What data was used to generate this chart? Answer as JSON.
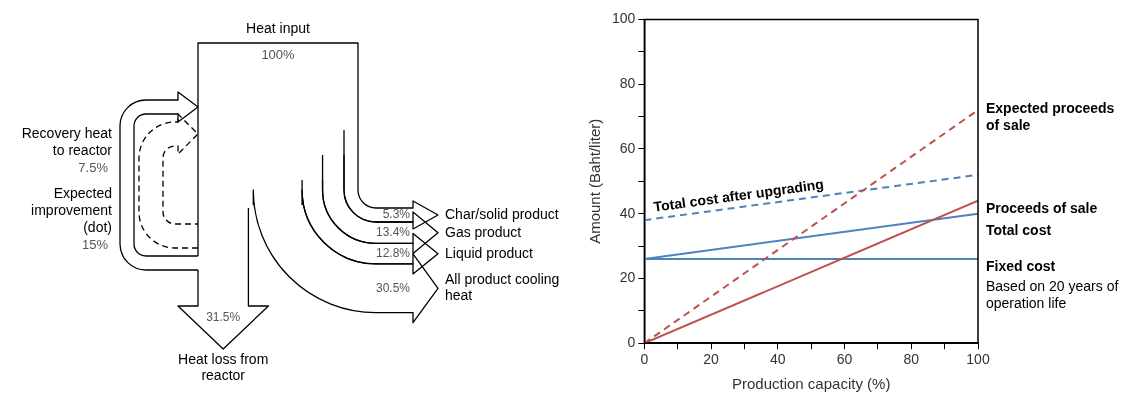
{
  "chart_data": [
    {
      "type": "other",
      "categories": [
        "Heat input",
        "Recovery heat to reactor",
        "Expected improvement (dot)",
        "Char/solid product",
        "Gas product",
        "Liquid product",
        "All product cooling heat",
        "Heat loss from reactor"
      ],
      "values": [
        100,
        7.5,
        15,
        5.3,
        13.4,
        12.8,
        30.5,
        31.5
      ],
      "value_labels": [
        "100%",
        "7.5%",
        "15%",
        "5.3%",
        "13.4%",
        "12.8%",
        "30.5%",
        "31.5%"
      ]
    },
    {
      "type": "line",
      "x": [
        0,
        100
      ],
      "xlabel": "Production capacity (%)",
      "ylabel": "Amount (Baht/liter)",
      "xlim": [
        0,
        100
      ],
      "ylim": [
        0,
        100
      ],
      "xticks": [
        0,
        {
          "value": 10,
          "label": null
        },
        20,
        {
          "value": 30,
          "label": null
        },
        40,
        {
          "value": 50,
          "label": null
        },
        60,
        {
          "value": 70,
          "label": null
        },
        80,
        {
          "value": 90,
          "label": null
        },
        100
      ],
      "yticks": [
        0,
        {
          "value": 10,
          "label": null
        },
        20,
        {
          "value": 30,
          "label": null
        },
        40,
        {
          "value": 50,
          "label": null
        },
        60,
        {
          "value": 70,
          "label": null
        },
        80,
        {
          "value": 90,
          "label": null
        },
        100
      ],
      "grid": false,
      "legend": false,
      "marker": "none",
      "series": [
        {
          "name": "Expected proceeds of sale",
          "color": "#c0504d",
          "line_style": "dashed",
          "values": [
            0,
            72
          ]
        },
        {
          "name": "Proceeds of sale",
          "color": "#c0504d",
          "line_style": "solid",
          "values": [
            0,
            44
          ]
        },
        {
          "name": "Total cost",
          "color": "#4f81bd",
          "line_style": "solid",
          "values": [
            26,
            40
          ]
        },
        {
          "name": "Fixed cost",
          "color": "#4f81bd",
          "line_style": "solid",
          "values": [
            26,
            26
          ]
        },
        {
          "name": "Total cost after upgrading",
          "color": "#4f81bd",
          "line_style": "dashed",
          "values": [
            38,
            52
          ]
        }
      ],
      "annotations": [
        "Based on 20 years of operation life"
      ]
    }
  ]
}
